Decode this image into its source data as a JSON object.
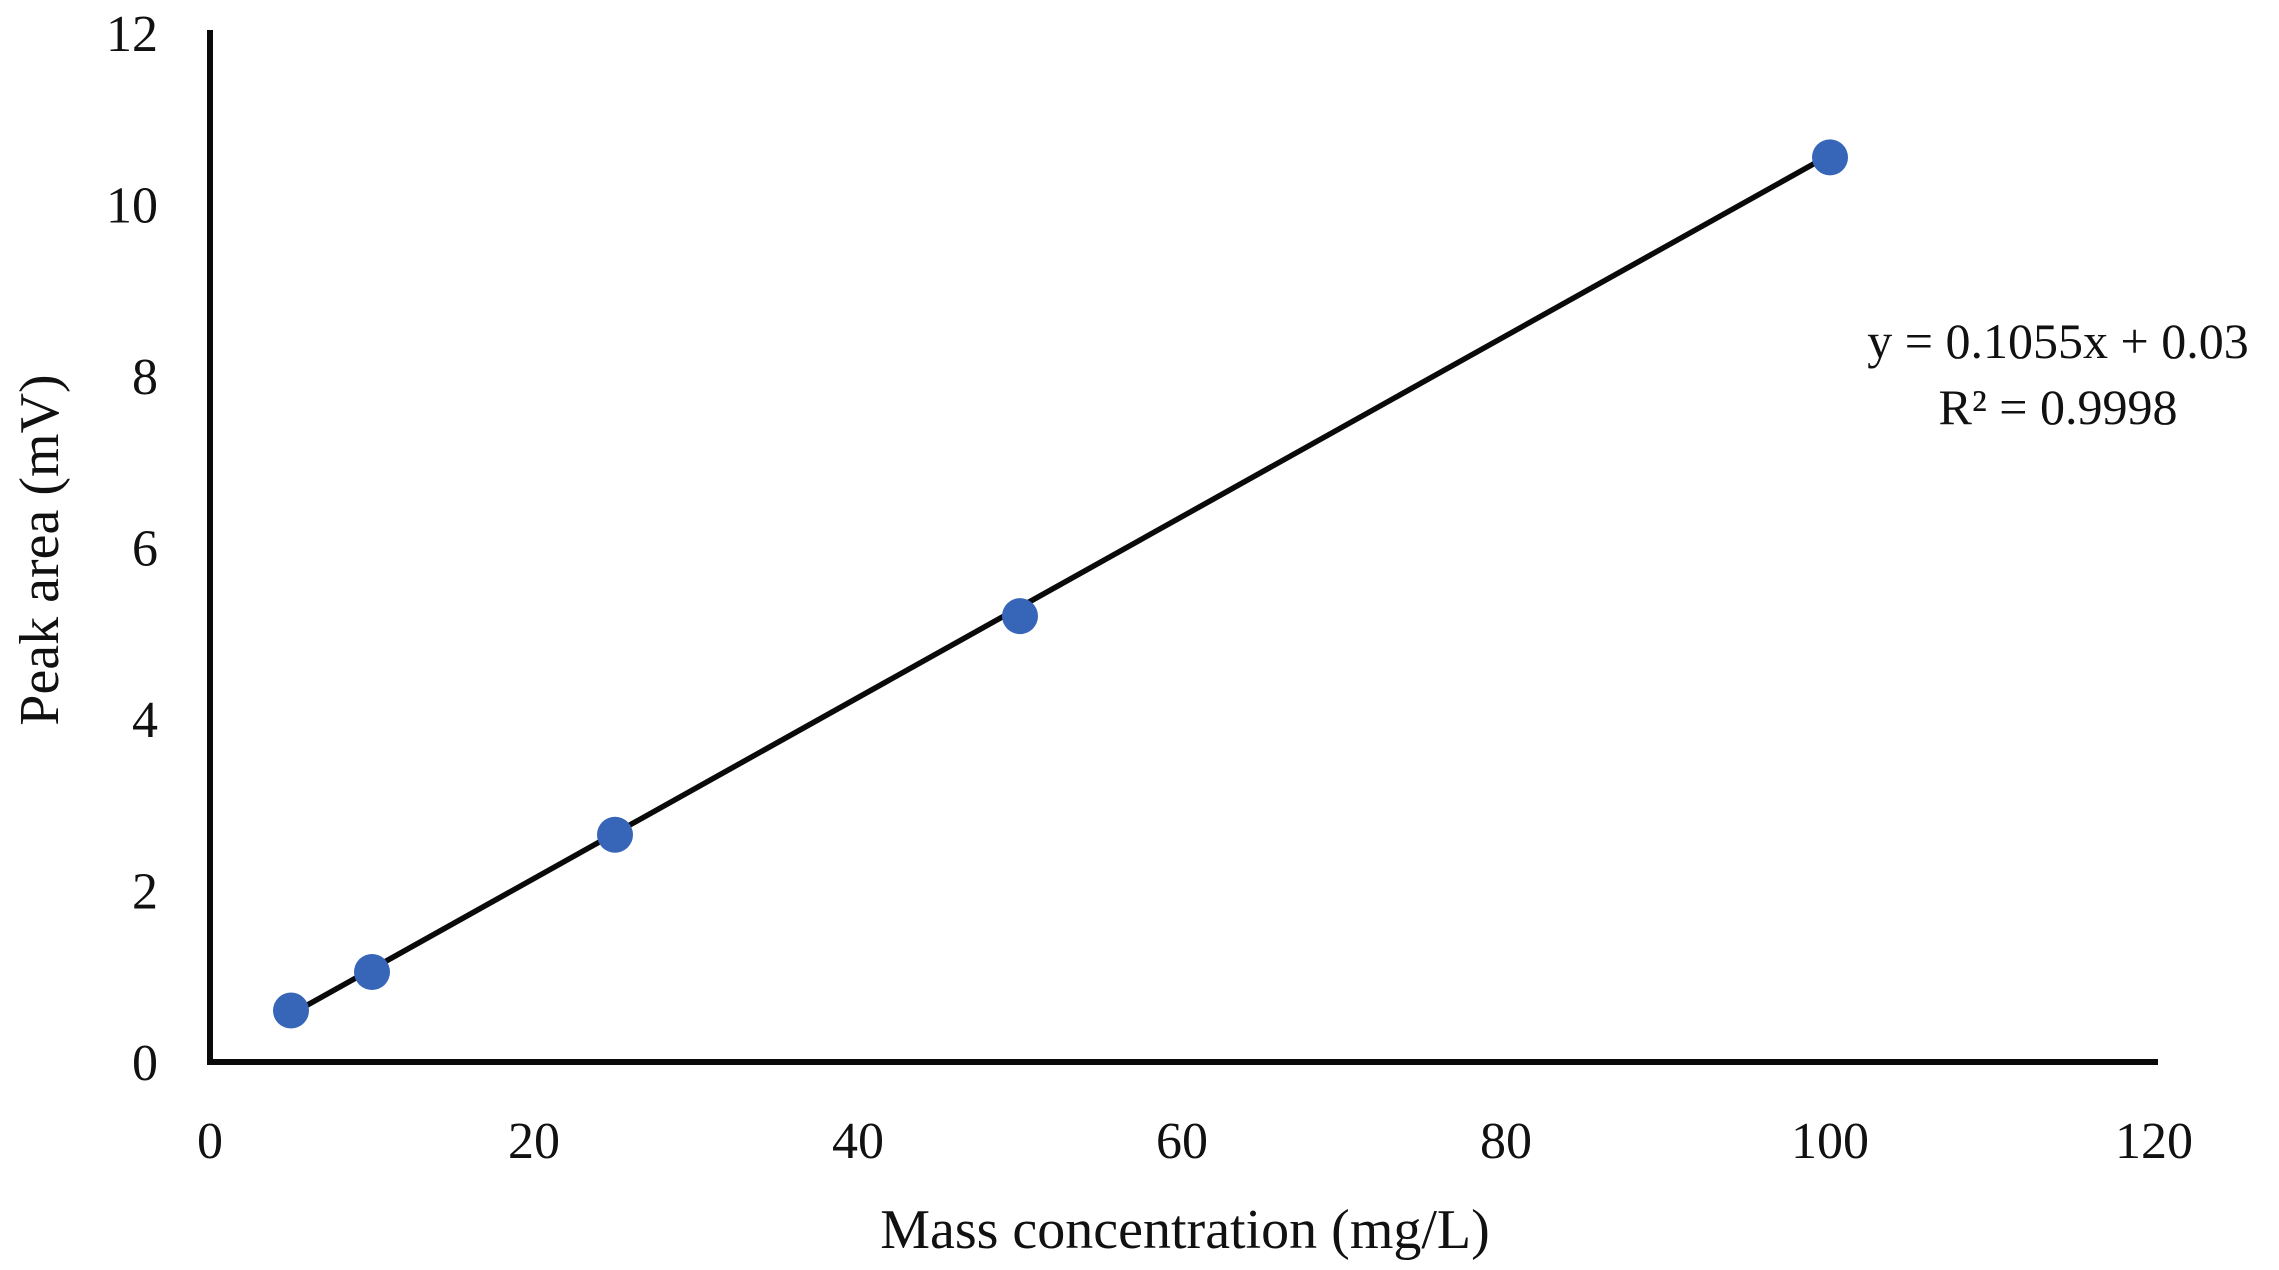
{
  "chart_data": {
    "type": "scatter",
    "title": "",
    "xlabel": "Mass concentration (mg/L)",
    "ylabel": "Peak area (mV)",
    "xlim": [
      0,
      120
    ],
    "ylim": [
      0,
      12
    ],
    "x_ticks": [
      0,
      20,
      40,
      60,
      80,
      100,
      120
    ],
    "y_ticks": [
      0,
      2,
      4,
      6,
      8,
      10,
      12
    ],
    "grid": false,
    "legend": false,
    "points": [
      {
        "x": 5,
        "y": 0.6
      },
      {
        "x": 10,
        "y": 1.05
      },
      {
        "x": 25,
        "y": 2.65
      },
      {
        "x": 50,
        "y": 5.2
      },
      {
        "x": 100,
        "y": 10.55
      }
    ],
    "trendline": {
      "slope": 0.1055,
      "intercept": 0.03,
      "x_start": 5,
      "x_end": 100
    },
    "annotation": {
      "equation": "y = 0.1055x + 0.03",
      "r_squared": "R² = 0.9998"
    },
    "colors": {
      "marker": "#3766b9",
      "trendline": "#0a0a0a",
      "axis": "#0a0a0a",
      "text": "#111111"
    }
  }
}
